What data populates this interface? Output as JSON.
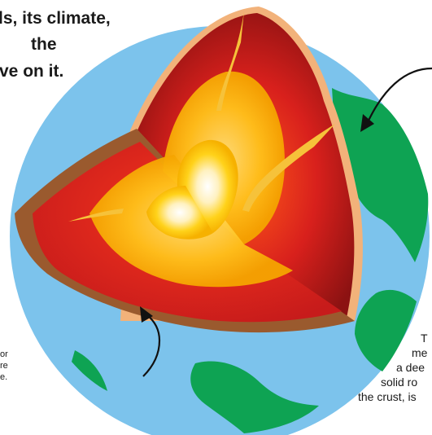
{
  "intro_text": {
    "lines": [
      "ls, its climate,",
      "the",
      "ve on it."
    ]
  },
  "left_caption": {
    "lines": [
      "or",
      "re",
      "e."
    ]
  },
  "right_caption": {
    "lines": [
      "T",
      "me",
      "a dee",
      "solid ro",
      "the crust, is"
    ]
  },
  "colors": {
    "ocean": "#7cc3ec",
    "land": "#0ea353",
    "crust": "#f2b27a",
    "cut_face": "#9a5a2e",
    "mantle_outer": "#d11f1f",
    "mantle_dark": "#8f1414",
    "outer_core": "#f6b800",
    "inner_core": "#fff6d8",
    "arrow": "#111111"
  }
}
